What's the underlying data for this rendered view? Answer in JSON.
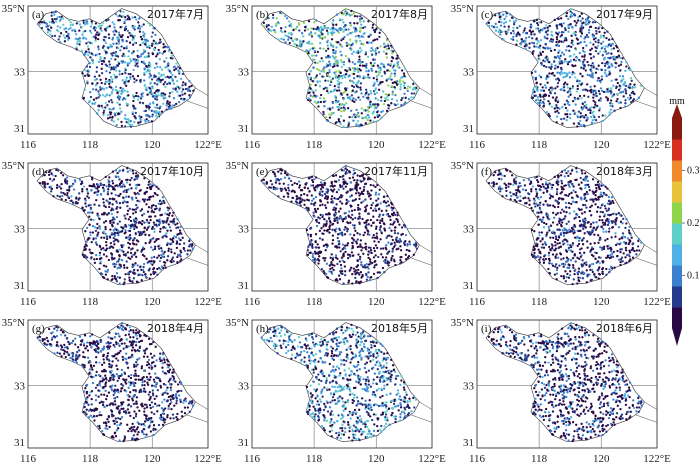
{
  "figure": {
    "panels": [
      {
        "label": "(a)",
        "title": "2017年7月",
        "mean_level": 0.12
      },
      {
        "label": "(b)",
        "title": "2017年8月",
        "mean_level": 0.15
      },
      {
        "label": "(c)",
        "title": "2017年9月",
        "mean_level": 0.1
      },
      {
        "label": "(d)",
        "title": "2017年10月",
        "mean_level": 0.05
      },
      {
        "label": "(e)",
        "title": "2017年11月",
        "mean_level": 0.03
      },
      {
        "label": "(f)",
        "title": "2018年3月",
        "mean_level": 0.05
      },
      {
        "label": "(g)",
        "title": "2018年4月",
        "mean_level": 0.05
      },
      {
        "label": "(h)",
        "title": "2018年5月",
        "mean_level": 0.12
      },
      {
        "label": "(i)",
        "title": "2018年6月",
        "mean_level": 0.06
      }
    ],
    "lat_ticks": [
      "35°N",
      "33",
      "31"
    ],
    "lon_ticks": [
      "116",
      "118",
      "120",
      "122°E"
    ],
    "colorbar": {
      "unit": "mm",
      "ticks": [
        "0.3",
        "0.2",
        "0.1"
      ],
      "colors": [
        "#2a0a45",
        "#253a8c",
        "#3a7fd0",
        "#4fb0e6",
        "#5fd0c8",
        "#8fd44a",
        "#e8c33a",
        "#f08a2a",
        "#d83020",
        "#8a1a10"
      ]
    }
  },
  "chart_data": {
    "type": "map",
    "region_lon": [
      116,
      122
    ],
    "region_lat": [
      30.5,
      35.2
    ],
    "unit": "mm",
    "value_range": [
      0,
      0.4
    ]
  }
}
